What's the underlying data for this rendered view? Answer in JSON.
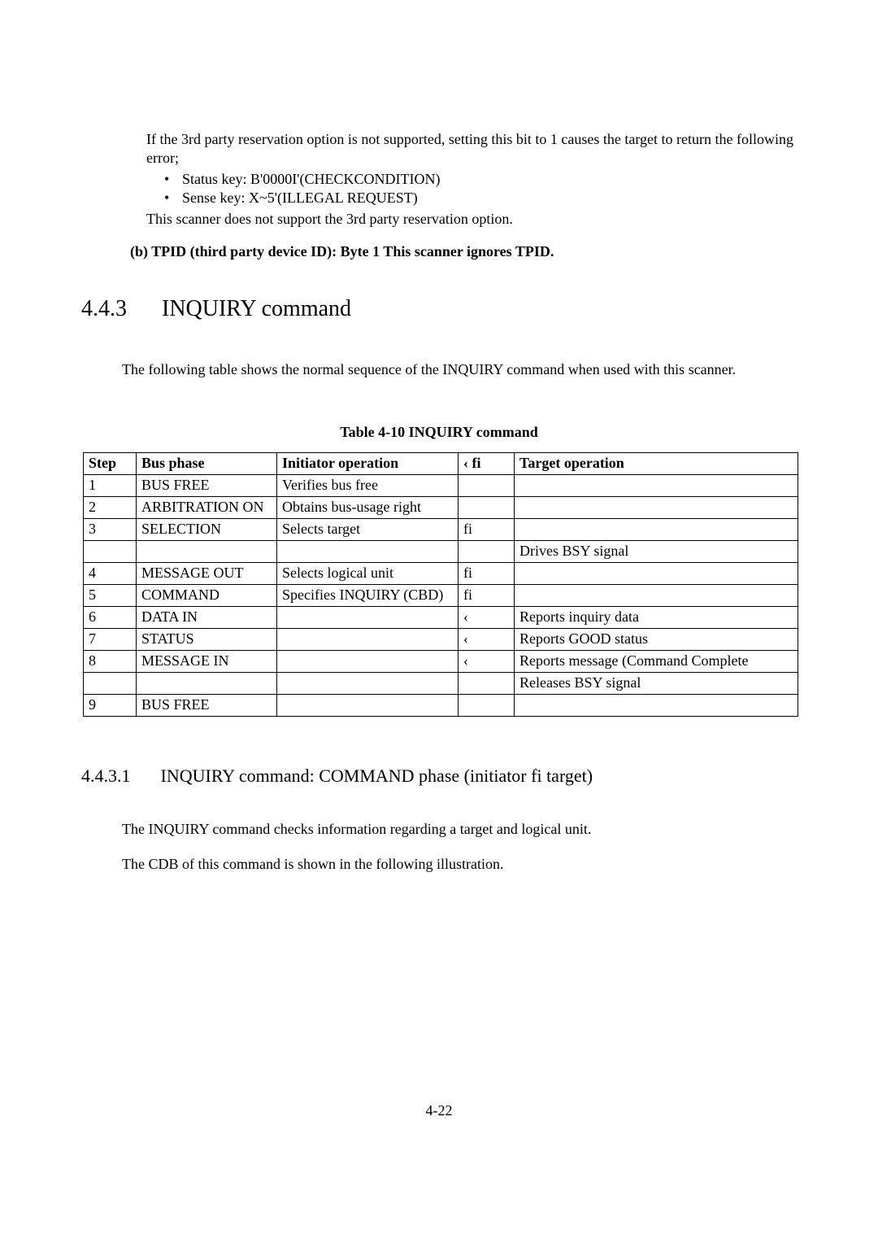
{
  "intro": {
    "p1": "If the 3rd party reservation option is not supported, setting this bit to 1 causes the target to return the following error;",
    "bullets": [
      "Status key: B'0000I'(CHECKCONDITION)",
      "Sense key: X~5'(ILLEGAL REQUEST)"
    ],
    "p2": "This scanner does not support the 3rd party reservation option."
  },
  "item_b": "(b)  TPID (third party device ID): Byte 1 This scanner ignores TPID.",
  "section": {
    "num": "4.4.3",
    "title": "INQUIRY command",
    "intro": "The following table shows the normal sequence of the INQUIRY command when used with this scanner."
  },
  "table": {
    "caption": "Table 4-10 INQUIRY command",
    "headers": {
      "step": "Step",
      "bus": "Bus phase",
      "init": "Initiator operation",
      "arrow": "‹    fi",
      "target": "Target operation"
    },
    "rows": [
      {
        "step": "1",
        "bus": "BUS FREE",
        "init": "Verifies bus free",
        "arrow": "",
        "target": ""
      },
      {
        "step": "2",
        "bus": "ARBITRATION ON",
        "init": "Obtains bus-usage right",
        "arrow": "",
        "target": ""
      },
      {
        "step": "3",
        "bus": "SELECTION",
        "init": "Selects target",
        "arrow": "fi",
        "target": ""
      },
      {
        "step": "",
        "bus": "",
        "init": "",
        "arrow": "",
        "target": "Drives BSY signal"
      },
      {
        "step": "4",
        "bus": "MESSAGE OUT",
        "init": "Selects logical unit",
        "arrow": "fi",
        "target": ""
      },
      {
        "step": "5",
        "bus": "COMMAND",
        "init": "Specifies INQUIRY (CBD)",
        "arrow": "fi",
        "target": ""
      },
      {
        "step": "6",
        "bus": "DATA IN",
        "init": "",
        "arrow": "‹",
        "target": "Reports inquiry data"
      },
      {
        "step": "7",
        "bus": "STATUS",
        "init": "",
        "arrow": "‹",
        "target": "Reports GOOD status"
      },
      {
        "step": "8",
        "bus": "MESSAGE IN",
        "init": "",
        "arrow": "‹",
        "target": "Reports message (Command Complete"
      },
      {
        "step": "",
        "bus": "",
        "init": "",
        "arrow": "",
        "target": "Releases BSY signal"
      },
      {
        "step": "9",
        "bus": "BUS FREE",
        "init": "",
        "arrow": "",
        "target": ""
      }
    ]
  },
  "subsection": {
    "num": "4.4.3.1",
    "title": "INQUIRY command: COMMAND phase (initiator fi   target)",
    "p1": "The INQUIRY command checks information regarding a target and logical unit.",
    "p2": "The CDB of this command is shown in the following illustration."
  },
  "page_number": "4-22"
}
